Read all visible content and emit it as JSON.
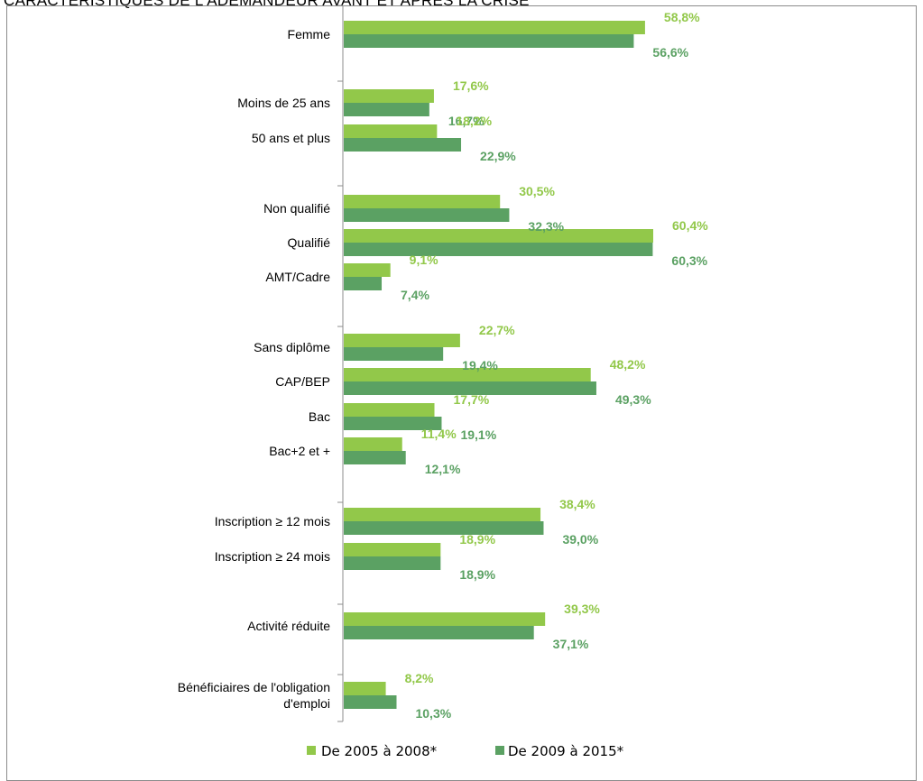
{
  "title": "CARACTÉRISTIQUES DE L'ADEMANDEUR AVANT ET APRÈS LA CRISE",
  "chart_data": {
    "type": "bar",
    "orientation": "horizontal",
    "xlim": [
      0,
      62
    ],
    "value_suffix": "%",
    "colors": {
      "series1": "#92c84a",
      "series2": "#5ba163"
    },
    "categories": [
      "Femme",
      "Moins de 25 ans",
      "50 ans et plus",
      "Non qualifié",
      "Qualifié",
      "AMT/Cadre",
      "Sans diplôme",
      "CAP/BEP",
      "Bac",
      "Bac+2 et +",
      "Inscription ≥ 12 mois",
      "Inscription ≥ 24 mois",
      "Activité réduite",
      "Bénéficiaires de l'obligation d'emploi"
    ],
    "category_lines": [
      [
        "Femme"
      ],
      [
        "Moins de 25 ans"
      ],
      [
        "50 ans et plus"
      ],
      [
        "Non qualifié"
      ],
      [
        "Qualifié"
      ],
      [
        "AMT/Cadre"
      ],
      [
        "Sans diplôme"
      ],
      [
        "CAP/BEP"
      ],
      [
        "Bac"
      ],
      [
        "Bac+2 et +"
      ],
      [
        "Inscription ≥ 12 mois"
      ],
      [
        "Inscription ≥ 24 mois"
      ],
      [
        "Activité réduite"
      ],
      [
        "Bénéficiaires de l'obligation",
        "d'emploi"
      ]
    ],
    "value_labels": [
      [
        "58,8%",
        "56,6%"
      ],
      [
        "17,6%",
        "16,7%"
      ],
      [
        "18,2%",
        "22,9%"
      ],
      [
        "30,5%",
        "32,3%"
      ],
      [
        "60,4%",
        "60,3%"
      ],
      [
        "9,1%",
        "7,4%"
      ],
      [
        "22,7%",
        "19,4%"
      ],
      [
        "48,2%",
        "49,3%"
      ],
      [
        "17,7%",
        "19,1%"
      ],
      [
        "11,4%",
        "12,1%"
      ],
      [
        "38,4%",
        "39,0%"
      ],
      [
        "18,9%",
        "18,9%"
      ],
      [
        "39,3%",
        "37,1%"
      ],
      [
        "8,2%",
        "10,3%"
      ]
    ],
    "series": [
      {
        "name": "De 2005 à 2008*",
        "values": [
          58.8,
          17.6,
          18.2,
          30.5,
          60.4,
          9.1,
          22.7,
          48.2,
          17.7,
          11.4,
          38.4,
          18.9,
          39.3,
          8.2
        ]
      },
      {
        "name": "De 2009 à 2015*",
        "values": [
          56.6,
          16.7,
          22.9,
          32.3,
          60.3,
          7.4,
          19.4,
          49.3,
          19.1,
          12.1,
          39.0,
          18.9,
          37.1,
          10.3
        ]
      }
    ],
    "legend_position": "bottom",
    "grid": false
  }
}
